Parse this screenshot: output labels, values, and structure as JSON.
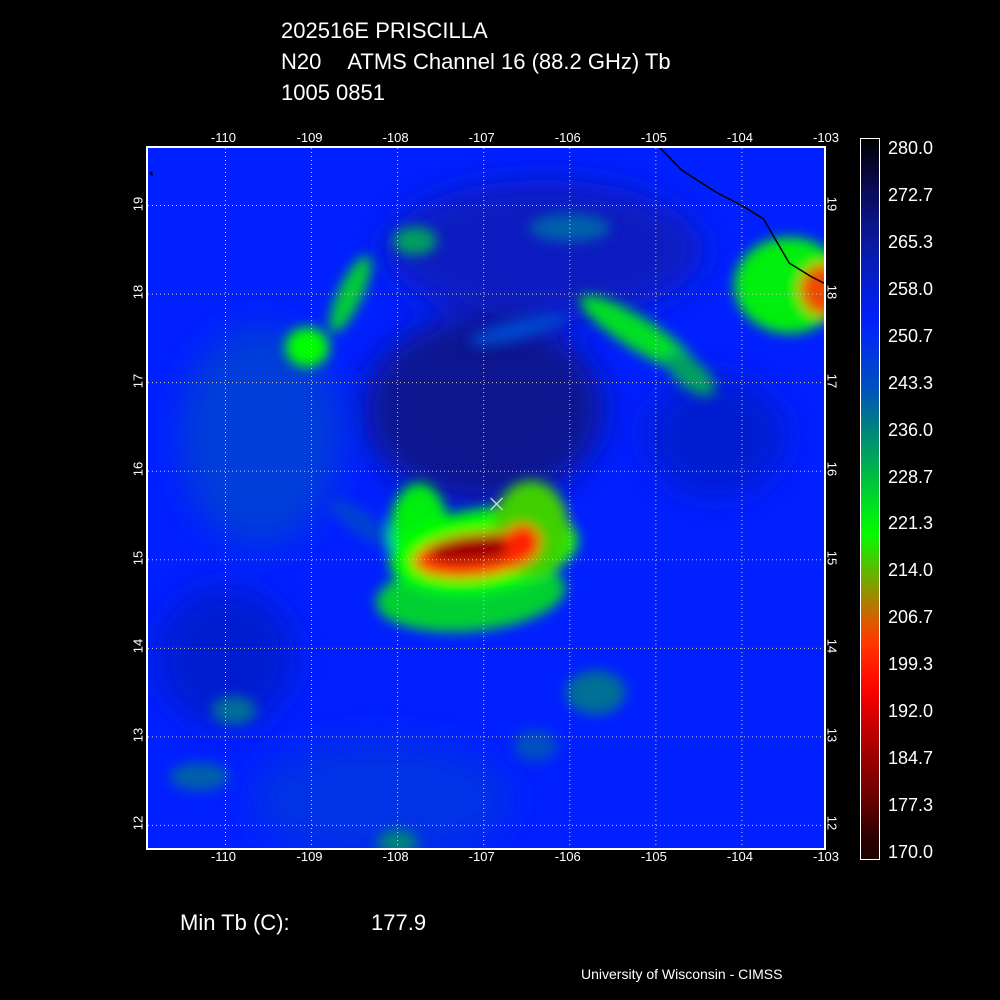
{
  "header": {
    "storm_id": "202516E PRISCILLA",
    "satellite": "N20",
    "instrument_line": "ATMS Channel 16 (88.2 GHz) Tb",
    "datetime": "1005 0851"
  },
  "map": {
    "lon_ticks": [
      "-110",
      "-109",
      "-108",
      "-107",
      "-106",
      "-105",
      "-104",
      "-103"
    ],
    "lat_ticks": [
      "19",
      "18",
      "17",
      "16",
      "15",
      "14",
      "13",
      "12"
    ],
    "lon_range": [
      -110.9,
      -103.0
    ],
    "lat_range": [
      11.7,
      19.65
    ],
    "storm_center": {
      "lon": -106.85,
      "lat": 15.63,
      "symbol": "×"
    },
    "background_tb": 252,
    "features": [
      {
        "name": "eyewall-core",
        "lon": -107.05,
        "lat": 15.1,
        "tb": 180
      },
      {
        "name": "eyewall-east",
        "lon": -106.45,
        "lat": 15.3,
        "tb": 215
      },
      {
        "name": "eyewall-west",
        "lon": -107.6,
        "lat": 15.2,
        "tb": 212
      },
      {
        "name": "southern-band",
        "lon": -107.2,
        "lat": 14.6,
        "tb": 225
      },
      {
        "name": "northeast-coastal-convection",
        "lon": -103.1,
        "lat": 18.1,
        "tb": 208
      },
      {
        "name": "north-band",
        "lon": -105.3,
        "lat": 17.6,
        "tb": 222
      },
      {
        "name": "northwest-band",
        "lon": -108.5,
        "lat": 18.0,
        "tb": 225
      },
      {
        "name": "west-cell",
        "lon": -109.1,
        "lat": 17.4,
        "tb": 222
      },
      {
        "name": "north-cell",
        "lon": -107.9,
        "lat": 18.6,
        "tb": 230
      },
      {
        "name": "south-cell",
        "lon": -105.7,
        "lat": 13.5,
        "tb": 238
      },
      {
        "name": "southwest-cell",
        "lon": -109.9,
        "lat": 13.3,
        "tb": 238
      },
      {
        "name": "far-southwest-cell",
        "lon": -110.3,
        "lat": 12.5,
        "tb": 240
      },
      {
        "name": "south-center-cell",
        "lon": -106.4,
        "lat": 12.9,
        "tb": 240
      },
      {
        "name": "bottom-cell",
        "lon": -108.0,
        "lat": 11.85,
        "tb": 235
      },
      {
        "name": "central-cold-dome",
        "lon": -107.1,
        "lat": 16.6,
        "tb": 268
      },
      {
        "name": "upper-cold-region",
        "lon": -106.5,
        "lat": 18.3,
        "tb": 262
      }
    ]
  },
  "colorbar": {
    "labels": [
      "280.0",
      "272.7",
      "265.3",
      "258.0",
      "250.7",
      "243.3",
      "236.0",
      "228.7",
      "221.3",
      "214.0",
      "206.7",
      "199.3",
      "192.0",
      "184.7",
      "177.3",
      "170.0"
    ],
    "colors": {
      "280": "#000000",
      "272": "#0a0a5a",
      "264": "#0a1aa0",
      "252": "#0020ff",
      "242": "#0050c0",
      "236": "#008080",
      "228": "#00c040",
      "220": "#00ff00",
      "212": "#7fa000",
      "204": "#ff4000",
      "196": "#ff0000",
      "188": "#b00000",
      "180": "#700000",
      "172": "#200000"
    }
  },
  "footer": {
    "min_tb_label": "Min Tb (C):",
    "min_tb_value": "177.9",
    "credit": "University of Wisconsin - CIMSS"
  }
}
